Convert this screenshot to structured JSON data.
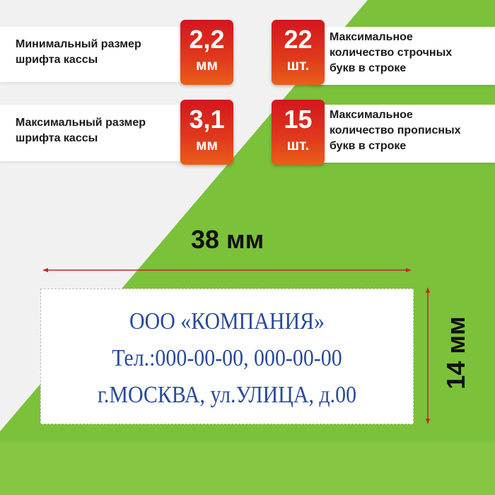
{
  "colors": {
    "background": "#f1f1f1",
    "green": "#7cc13a",
    "badge_red": "#d4161e",
    "stamp_ink": "#2a4a9a",
    "arrow": "#c0282a"
  },
  "specs": [
    {
      "label_lines": [
        "Минимальный размер",
        "шрифта кассы"
      ],
      "value": "2,2",
      "unit": "мм"
    },
    {
      "label_lines": [
        "Максимальное",
        "количество строчных",
        "букв в строке"
      ],
      "value": "22",
      "unit": "шт."
    },
    {
      "label_lines": [
        "Максимальный размер",
        "шрифта кассы"
      ],
      "value": "3,1",
      "unit": "мм"
    },
    {
      "label_lines": [
        "Максимальное",
        "количество прописных",
        "букв в строке"
      ],
      "value": "15",
      "unit": "шт."
    }
  ],
  "width_label": "38 мм",
  "height_label": "14 мм",
  "stamp_lines": [
    "ООО «КОМПАНИЯ»",
    "Тел.:000-00-00, 000-00-00",
    "г.МОСКВА, ул.УЛИЦА, д.00"
  ]
}
